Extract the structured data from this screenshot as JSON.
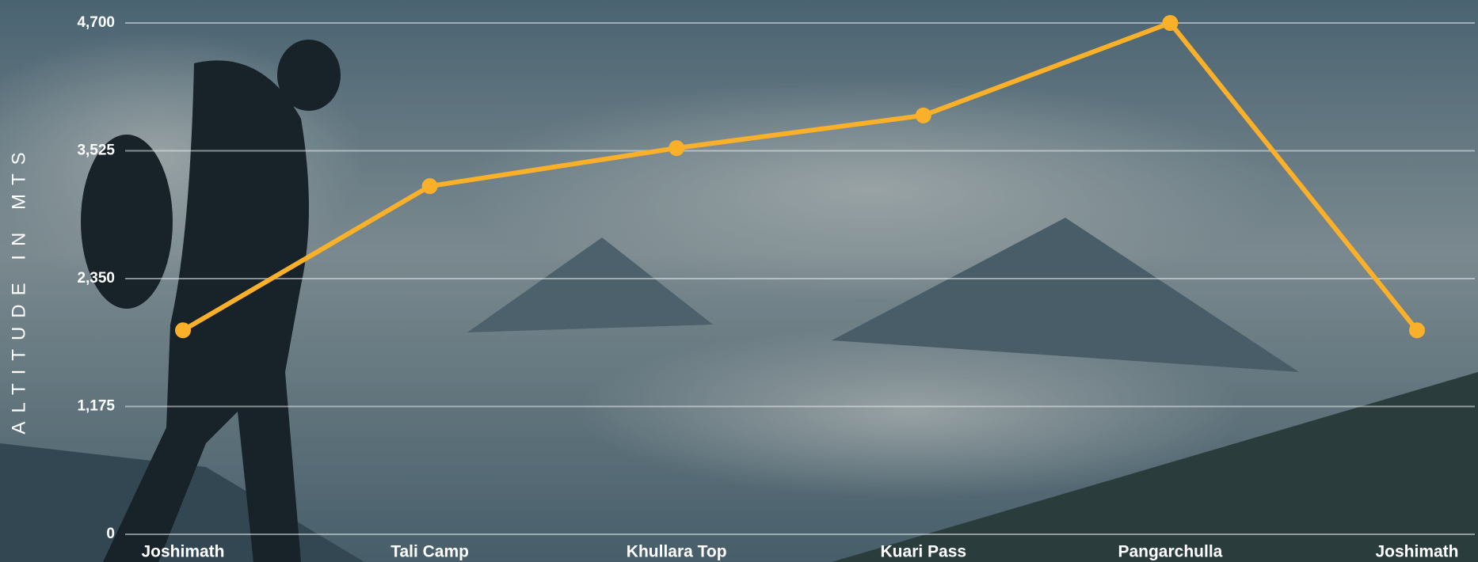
{
  "chart_data": {
    "type": "line",
    "y_axis_label": "ALTITUDE IN MTS",
    "categories": [
      "Joshimath",
      "Tali Camp",
      "Khullara Top",
      "Kuari Pass",
      "Pangarchulla",
      "Joshimath"
    ],
    "series": [
      {
        "color": "#fbb02a",
        "values": [
          1875,
          3200,
          3550,
          3850,
          4700,
          1875
        ]
      }
    ],
    "ylim": [
      0,
      4700
    ],
    "yticks": [
      0,
      {
        "value": 1175,
        "label": "1,175"
      },
      {
        "value": 2350,
        "label": "2,350"
      },
      {
        "value": 3525,
        "label": "3,525"
      },
      {
        "value": 4700,
        "label": "4,700"
      }
    ],
    "grid": true
  }
}
